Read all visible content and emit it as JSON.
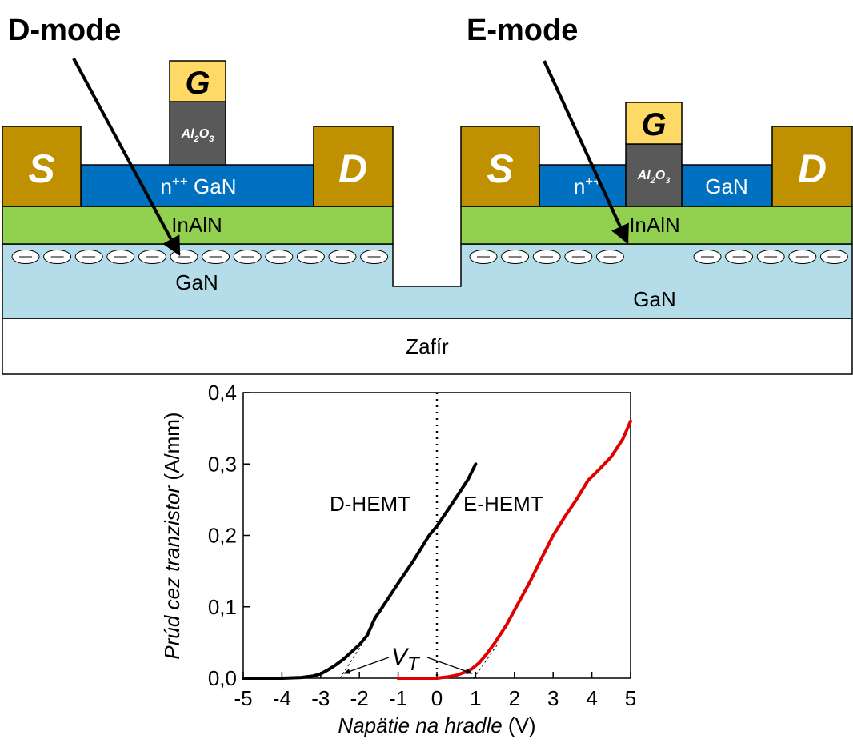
{
  "diagram": {
    "d_mode_title": "D-mode",
    "e_mode_title": "E-mode",
    "substrate_label": "Zafír",
    "d_device": {
      "source": "S",
      "drain": "D",
      "gate": "G",
      "gate_oxide_base": "Al",
      "gate_oxide_sub1": "2",
      "gate_oxide_mid": "O",
      "gate_oxide_sub2": "3",
      "cap_base": "n",
      "cap_sup": "++",
      "cap_rest": " GaN",
      "barrier": "InAlN",
      "channel": "GaN",
      "electron_count": 12
    },
    "e_device": {
      "source": "S",
      "drain": "D",
      "gate": "G",
      "gate_oxide_base": "Al",
      "gate_oxide_sub1": "2",
      "gate_oxide_mid": "O",
      "gate_oxide_sub2": "3",
      "cap_left_base": "n",
      "cap_left_sup": "++",
      "cap_right": "GaN",
      "barrier": "InAlN",
      "channel": "GaN",
      "electrons_left": 5,
      "electrons_right": 5
    },
    "colors": {
      "contact": "#bf9000",
      "gate": "#ffd966",
      "oxide": "#595959",
      "cap": "#0070c0",
      "barrier": "#92d050",
      "gan": "#b4dde9",
      "substrate": "#ffffff"
    }
  },
  "chart_data": {
    "type": "line",
    "xlabel_italic": "Napätie na hradle",
    "xlabel_unit": " (V)",
    "ylabel_italic": "Prúd cez tranzistor",
    "ylabel_unit": " (A/mm)",
    "xlim": [
      -5,
      5
    ],
    "ylim": [
      0,
      0.4
    ],
    "x_ticks": [
      "-5",
      "-4",
      "-3",
      "-2",
      "-1",
      "0",
      "1",
      "2",
      "3",
      "4",
      "5"
    ],
    "y_ticks": [
      "0,0",
      "0,1",
      "0,2",
      "0,3",
      "0,4"
    ],
    "reference_line_x": 0,
    "series": [
      {
        "name": "D-HEMT",
        "color": "#000000",
        "x": [
          -5,
          -4,
          -3.5,
          -3.2,
          -3.0,
          -2.8,
          -2.6,
          -2.4,
          -2.2,
          -2.0,
          -1.8,
          -1.6,
          -1.4,
          -1.0,
          -0.6,
          -0.2,
          0,
          0.4,
          0.8,
          1.0
        ],
        "y": [
          0.0,
          0.0,
          0.001,
          0.003,
          0.006,
          0.012,
          0.019,
          0.027,
          0.037,
          0.047,
          0.06,
          0.084,
          0.1,
          0.133,
          0.165,
          0.2,
          0.213,
          0.245,
          0.278,
          0.3
        ]
      },
      {
        "name": "E-HEMT",
        "color": "#e00000",
        "x": [
          -1.0,
          0.0,
          0.3,
          0.5,
          0.7,
          0.9,
          1.1,
          1.3,
          1.5,
          1.8,
          2.1,
          2.4,
          2.7,
          3.0,
          3.3,
          3.6,
          3.9,
          4.2,
          4.5,
          4.8,
          5.0
        ],
        "y": [
          0.0,
          0.0,
          0.002,
          0.004,
          0.008,
          0.013,
          0.022,
          0.035,
          0.05,
          0.075,
          0.105,
          0.135,
          0.168,
          0.2,
          0.226,
          0.25,
          0.277,
          0.293,
          0.31,
          0.335,
          0.36
        ]
      }
    ],
    "annotations": {
      "d_label": "D-HEMT",
      "e_label": "E-HEMT",
      "vt_base": "V",
      "vt_sub": "T",
      "vt_d_value": -2.5,
      "vt_e_value": 0.95
    }
  }
}
